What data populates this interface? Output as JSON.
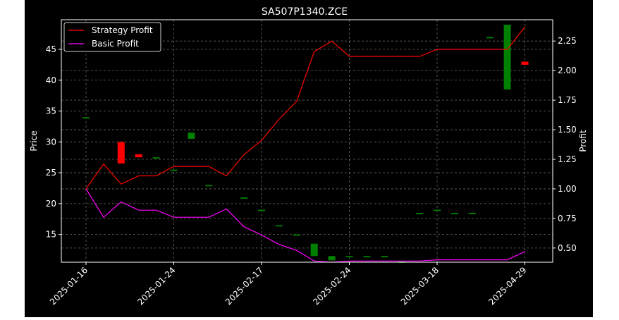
{
  "chart_data": {
    "type": "candlestick+line",
    "title": "SA507P1340.ZCE",
    "ylabel_left": "Price",
    "ylabel_right": "Profit",
    "ylim_left": [
      10.5,
      49.8
    ],
    "ylim_right": [
      0.38,
      2.43
    ],
    "yticks_left": [
      15,
      20,
      25,
      30,
      35,
      40,
      45
    ],
    "yticks_right": [
      0.5,
      0.75,
      1.0,
      1.25,
      1.5,
      1.75,
      2.0,
      2.25
    ],
    "ytick_labels_right": [
      "0.50",
      "0.75",
      "1.00",
      "1.25",
      "1.50",
      "1.75",
      "2.00",
      "2.25"
    ],
    "xtick_labels": [
      "2025-01-16",
      "2025-01-24",
      "2025-02-17",
      "2025-02-24",
      "2025-03-18",
      "2025-04-29"
    ],
    "xtick_index": [
      0,
      5,
      10,
      15,
      20,
      25
    ],
    "grid": true,
    "legend_position": "top-left",
    "colors": {
      "up": "#008000",
      "down": "#ff0000",
      "strategy": "#ff0000",
      "basic": "#ff00ff",
      "background": "#000000",
      "text": "#ffffff",
      "grid": "#666666"
    },
    "candles": [
      {
        "i": 0,
        "open": 34.0,
        "close": 34.0
      },
      {
        "i": 2,
        "open": 30.0,
        "close": 26.5
      },
      {
        "i": 3,
        "open": 28.0,
        "close": 27.5
      },
      {
        "i": 4,
        "open": 27.5,
        "close": 27.5
      },
      {
        "i": 5,
        "open": 25.5,
        "close": 25.5
      },
      {
        "i": 6,
        "open": 30.5,
        "close": 31.5
      },
      {
        "i": 7,
        "open": 23.0,
        "close": 23.0
      },
      {
        "i": 9,
        "open": 21.0,
        "close": 21.0
      },
      {
        "i": 10,
        "open": 19.0,
        "close": 19.0
      },
      {
        "i": 11,
        "open": 16.5,
        "close": 16.5
      },
      {
        "i": 12,
        "open": 15.0,
        "close": 15.0
      },
      {
        "i": 13,
        "open": 11.5,
        "close": 13.5
      },
      {
        "i": 14,
        "open": 10.8,
        "close": 11.5
      },
      {
        "i": 15,
        "open": 11.5,
        "close": 11.5
      },
      {
        "i": 16,
        "open": 11.5,
        "close": 11.5
      },
      {
        "i": 17,
        "open": 11.5,
        "close": 11.5
      },
      {
        "i": 18,
        "open": 10.6,
        "close": 10.6
      },
      {
        "i": 19,
        "open": 18.5,
        "close": 18.5
      },
      {
        "i": 20,
        "open": 19.0,
        "close": 19.0
      },
      {
        "i": 21,
        "open": 18.5,
        "close": 18.5
      },
      {
        "i": 22,
        "open": 18.5,
        "close": 18.5
      },
      {
        "i": 23,
        "open": 47.0,
        "close": 47.0
      },
      {
        "i": 24,
        "open": 38.5,
        "close": 49.0
      },
      {
        "i": 25,
        "open": 43.0,
        "close": 42.5
      }
    ],
    "series": [
      {
        "name": "Strategy Profit",
        "color": "#ff0000",
        "values": [
          1.0,
          1.21,
          1.04,
          1.11,
          1.11,
          1.19,
          1.19,
          1.19,
          1.11,
          1.29,
          1.41,
          1.59,
          1.74,
          2.16,
          2.25,
          2.12,
          2.12,
          2.12,
          2.12,
          2.12,
          2.18,
          2.18,
          2.18,
          2.18,
          2.18,
          2.37
        ]
      },
      {
        "name": "Basic Profit",
        "color": "#ff00ff",
        "values": [
          1.0,
          0.76,
          0.89,
          0.82,
          0.82,
          0.76,
          0.76,
          0.76,
          0.83,
          0.68,
          0.61,
          0.53,
          0.48,
          0.39,
          0.38,
          0.39,
          0.39,
          0.39,
          0.39,
          0.39,
          0.4,
          0.4,
          0.4,
          0.4,
          0.4,
          0.47
        ]
      }
    ]
  }
}
